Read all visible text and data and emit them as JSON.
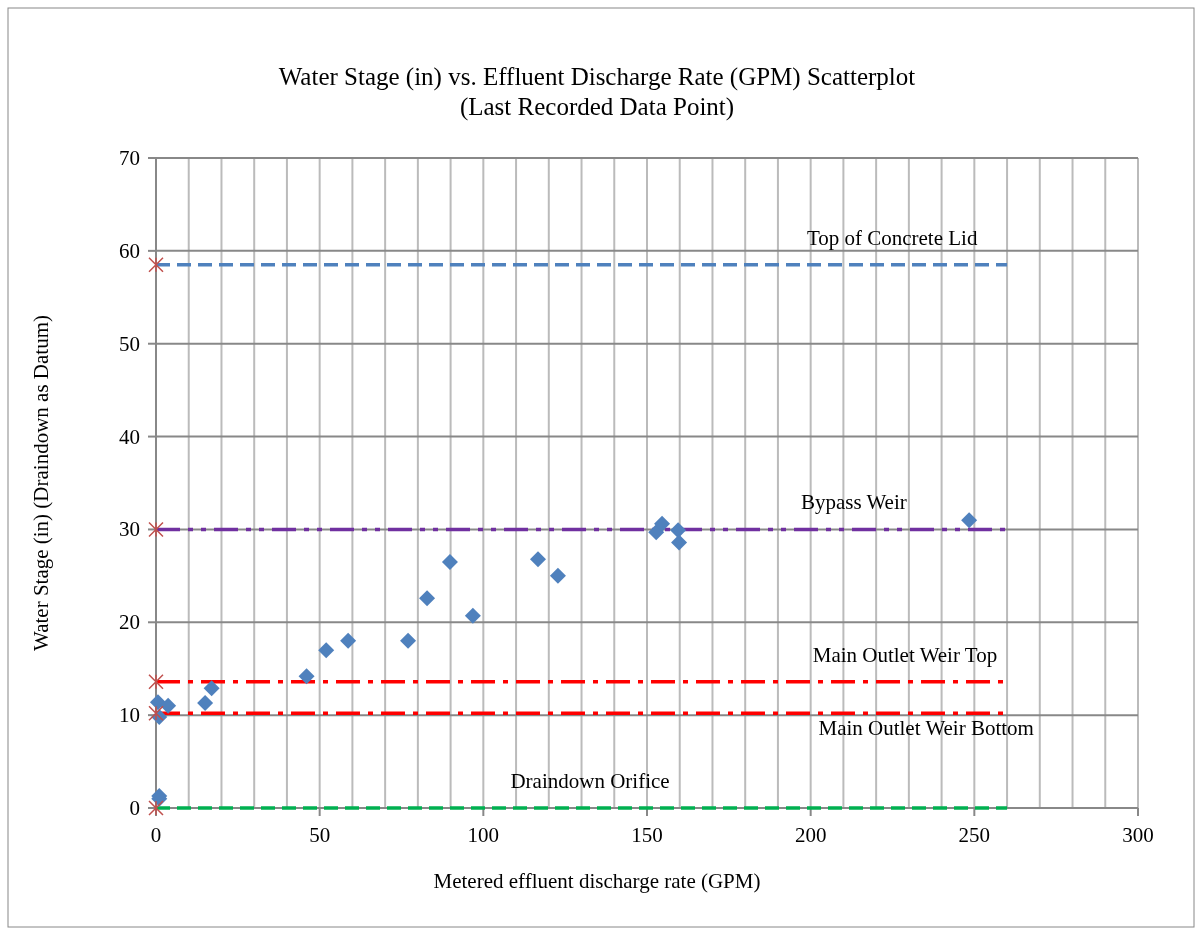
{
  "chart_data": {
    "type": "scatter",
    "title": "Water Stage (in) vs. Effluent Discharge Rate (GPM) Scatterplot\n(Last Recorded Data Point)",
    "xlabel": "Metered effluent discharge rate (GPM)",
    "ylabel": "Water Stage (in) (Draindown as Datum)",
    "xlim": [
      0,
      300
    ],
    "ylim": [
      0,
      70
    ],
    "xticks": [
      0,
      {
        "value": 10,
        "label": null
      },
      {
        "value": 20,
        "label": null
      },
      {
        "value": 30,
        "label": null
      },
      {
        "value": 40,
        "label": null
      },
      50,
      {
        "value": 60,
        "label": null
      },
      {
        "value": 70,
        "label": null
      },
      {
        "value": 80,
        "label": null
      },
      {
        "value": 90,
        "label": null
      },
      100,
      {
        "value": 110,
        "label": null
      },
      {
        "value": 120,
        "label": null
      },
      {
        "value": 130,
        "label": null
      },
      {
        "value": 140,
        "label": null
      },
      150,
      {
        "value": 160,
        "label": null
      },
      {
        "value": 170,
        "label": null
      },
      {
        "value": 180,
        "label": null
      },
      {
        "value": 190,
        "label": null
      },
      200,
      {
        "value": 210,
        "label": null
      },
      {
        "value": 220,
        "label": null
      },
      {
        "value": 230,
        "label": null
      },
      {
        "value": 240,
        "label": null
      },
      250,
      {
        "value": 260,
        "label": null
      },
      {
        "value": 270,
        "label": null
      },
      {
        "value": 280,
        "label": null
      },
      {
        "value": 290,
        "label": null
      },
      300
    ],
    "yticks": [
      0,
      10,
      20,
      30,
      40,
      50,
      60,
      70
    ],
    "grid": true,
    "legend": false,
    "series": [
      {
        "marker": "diamond",
        "color": "#4f81bd",
        "x": [
          1,
          1,
          0.6,
          1,
          3.7,
          15,
          17,
          46,
          52,
          58.7,
          77,
          82.8,
          89.8,
          96.8,
          116.7,
          122.8,
          152.8,
          154.6,
          159.5,
          159.8,
          248.4
        ],
        "values": [
          1.3,
          1.0,
          11.4,
          9.8,
          11,
          11.3,
          12.9,
          14.2,
          17.0,
          18.0,
          18.0,
          22.6,
          26.5,
          20.7,
          26.8,
          25.0,
          29.7,
          30.6,
          29.9,
          28.6,
          31.0
        ]
      },
      {
        "type": "line",
        "name": "Top of Concrete Lid",
        "marker": "none",
        "line_style": "dashed",
        "color": "#4f81bd",
        "x": [
          0,
          260
        ],
        "values": [
          58.5,
          58.5
        ]
      },
      {
        "type": "line",
        "name": "Bypass Weir",
        "marker": "none",
        "line_style": "dashdotdot",
        "color": "#7030a0",
        "x": [
          0,
          260
        ],
        "values": [
          30,
          30
        ]
      },
      {
        "type": "line",
        "name": "Main Outlet Weir Top",
        "marker": "none",
        "line_style": "dashdot",
        "color": "#ff0000",
        "x": [
          0,
          260
        ],
        "values": [
          13.6,
          13.6
        ]
      },
      {
        "type": "line",
        "name": "Main Outlet Weir Bottom",
        "marker": "none",
        "line_style": "dashdot",
        "color": "#ff0000",
        "x": [
          0,
          260
        ],
        "values": [
          10.2,
          10.2
        ]
      },
      {
        "type": "line",
        "name": "Draindown Orifice",
        "marker": "none",
        "line_style": "dashed",
        "color": "#00b050",
        "x": [
          0,
          260
        ],
        "values": [
          0,
          0
        ]
      },
      {
        "marker": "cross",
        "color": "#c0504d",
        "x": [
          0,
          0,
          0,
          0,
          0
        ],
        "values": [
          58.5,
          30,
          13.6,
          10.2,
          0
        ]
      }
    ]
  }
}
